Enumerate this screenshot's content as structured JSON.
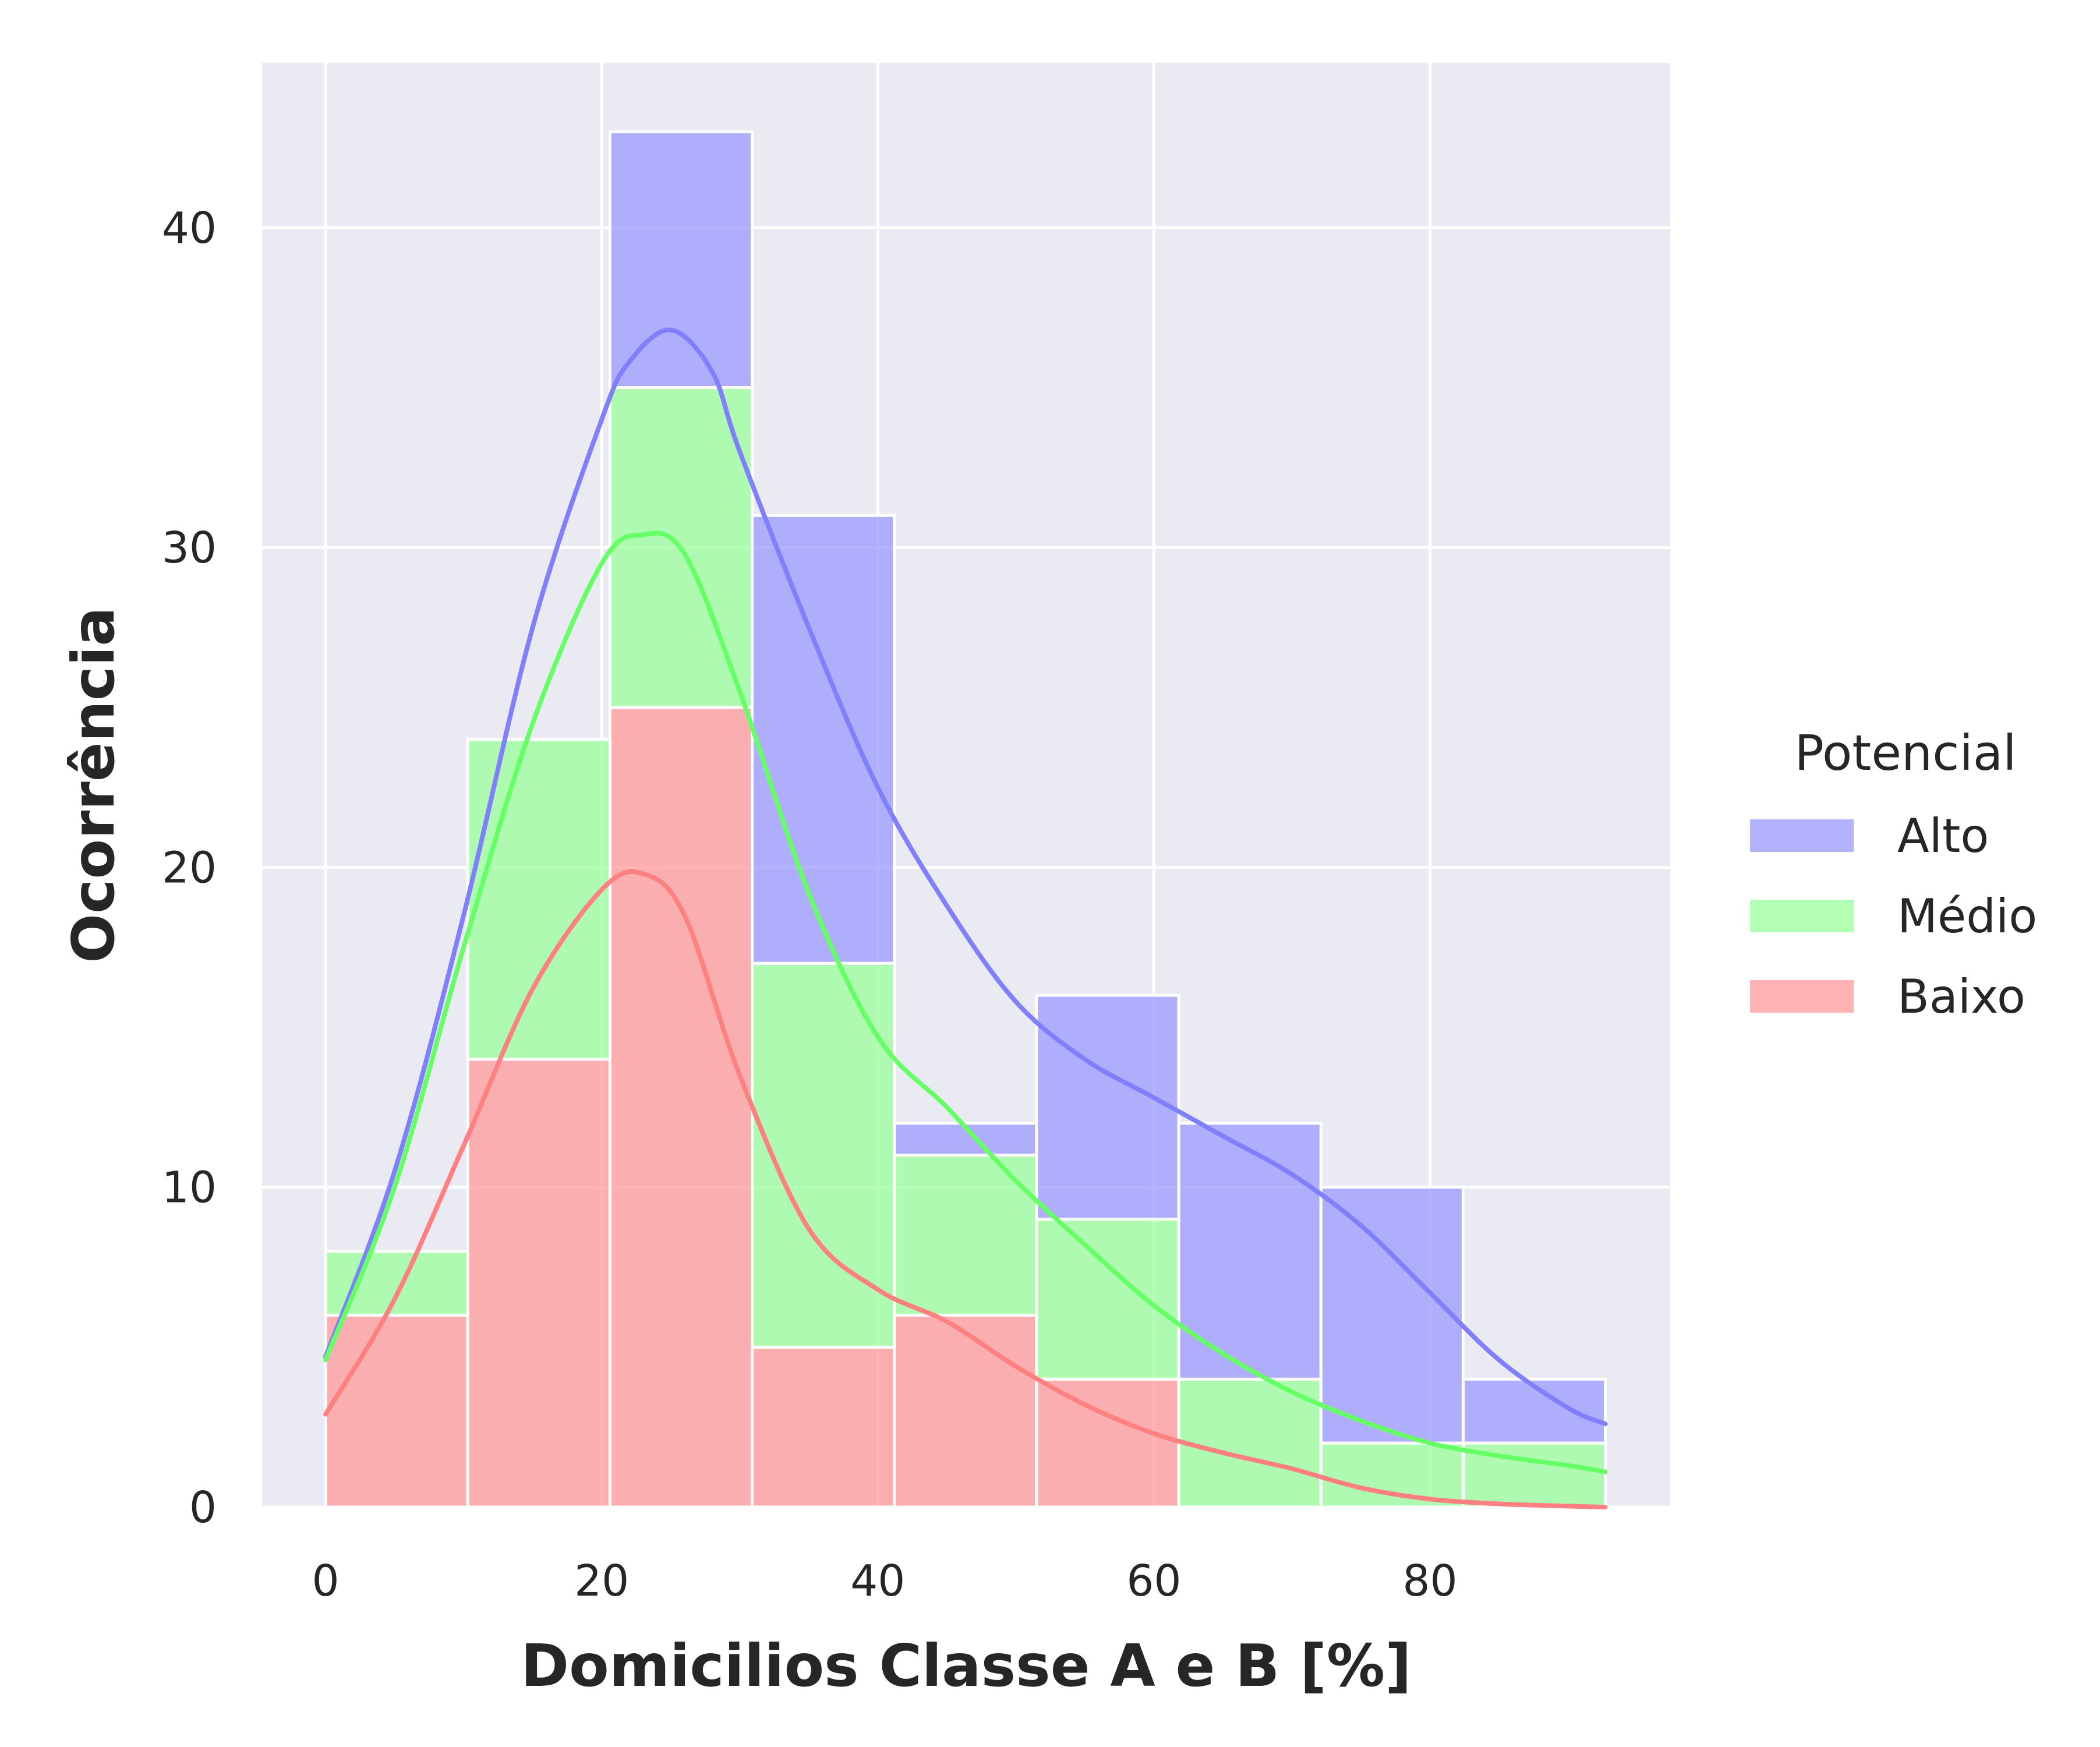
{
  "chart_data": {
    "type": "histogram",
    "stacking": "stacked",
    "xlabel": "Domicilios Classe A e B [%]",
    "ylabel": "Ocorrência",
    "xlim": [
      -4.6,
      97.4
    ],
    "ylim": [
      0,
      45.15
    ],
    "xticks": [
      0,
      20,
      40,
      60,
      80
    ],
    "yticks": [
      0,
      10,
      20,
      30,
      40
    ],
    "grid": true,
    "bin_edges": [
      0,
      10.3,
      20.6,
      30.9,
      41.2,
      51.5,
      61.8,
      72.1,
      82.4,
      92.7
    ],
    "series": [
      {
        "name": "Baixo",
        "color": "#ff9999",
        "counts": [
          6,
          14,
          25,
          5,
          6,
          4,
          0,
          0,
          0
        ]
      },
      {
        "name": "Médio",
        "color": "#99ff99",
        "counts": [
          2,
          10,
          10,
          12,
          5,
          5,
          4,
          2,
          2
        ]
      },
      {
        "name": "Alto",
        "color": "#9999ff",
        "counts": [
          0,
          0,
          8,
          14,
          1,
          7,
          8,
          8,
          2
        ]
      }
    ],
    "kde": [
      {
        "name": "Alto",
        "color": "#8080ff",
        "x": [
          0,
          5,
          10,
          15,
          20,
          22,
          25,
          28,
          30,
          35,
          40,
          45,
          50,
          55,
          60,
          65,
          70,
          75,
          80,
          85,
          90,
          92.7
        ],
        "y": [
          4.7,
          10.5,
          18.5,
          27.5,
          34.0,
          35.8,
          36.8,
          35.5,
          33.0,
          27.5,
          22.5,
          18.8,
          15.8,
          14.0,
          12.8,
          11.6,
          10.4,
          8.8,
          6.7,
          4.6,
          3.1,
          2.6
        ]
      },
      {
        "name": "Médio",
        "color": "#66ff66",
        "x": [
          0,
          5,
          10,
          15,
          20,
          23,
          26,
          30,
          35,
          40,
          45,
          50,
          55,
          60,
          65,
          70,
          75,
          80,
          85,
          90,
          92.7
        ],
        "y": [
          4.6,
          10.0,
          17.5,
          24.5,
          29.5,
          30.4,
          29.8,
          25.5,
          19.2,
          14.7,
          12.5,
          10.2,
          8.2,
          6.3,
          4.8,
          3.6,
          2.7,
          2.0,
          1.6,
          1.3,
          1.1
        ]
      },
      {
        "name": "Baixo",
        "color": "#ff8080",
        "x": [
          0,
          5,
          10,
          15,
          20,
          23,
          26,
          30,
          35,
          40,
          45,
          50,
          55,
          60,
          65,
          70,
          75,
          80,
          85,
          90,
          92.7
        ],
        "y": [
          2.9,
          6.5,
          11.3,
          16.2,
          19.3,
          19.8,
          18.5,
          13.5,
          8.7,
          6.8,
          5.8,
          4.4,
          3.2,
          2.3,
          1.7,
          1.2,
          0.6,
          0.25,
          0.1,
          0.03,
          0.0
        ]
      }
    ],
    "legend": {
      "title": "Potencial",
      "placement": "right",
      "entries": [
        {
          "label": "Alto",
          "color": "#9999ff"
        },
        {
          "label": "Médio",
          "color": "#99ff99"
        },
        {
          "label": "Baixo",
          "color": "#ff9999"
        }
      ]
    },
    "background_color": "#eaeaf2"
  }
}
